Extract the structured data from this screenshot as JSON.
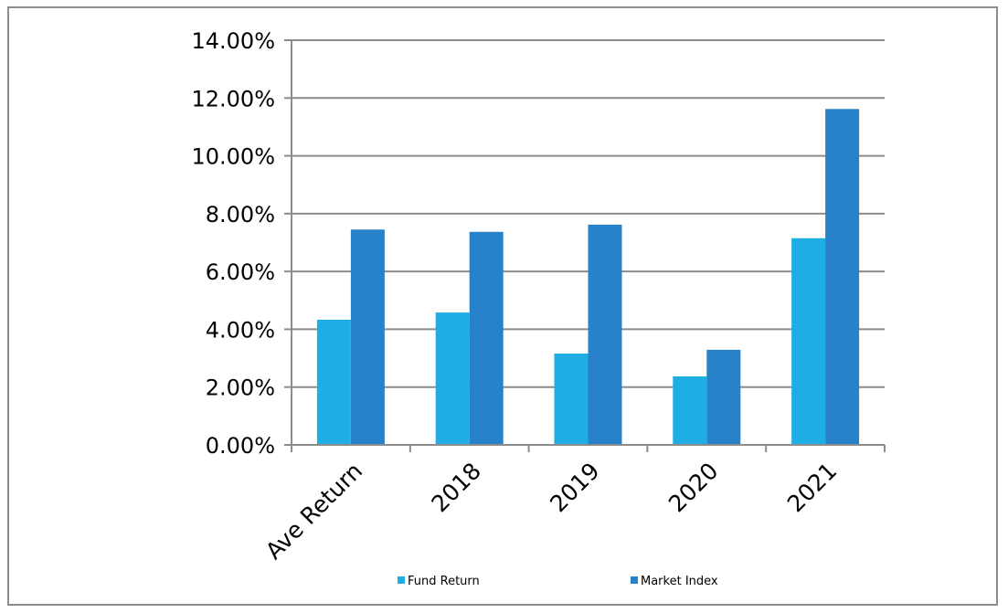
{
  "chart_data": {
    "type": "bar",
    "title": "",
    "xlabel": "",
    "ylabel": "",
    "categories": [
      "Ave Return",
      "2018",
      "2019",
      "2020",
      "2021"
    ],
    "series": [
      {
        "name": "Fund Return",
        "color": "#1faee3",
        "values": [
          4.33,
          4.58,
          3.16,
          2.37,
          7.15
        ]
      },
      {
        "name": "Market Index",
        "color": "#2882c9",
        "values": [
          7.45,
          7.37,
          7.62,
          3.29,
          11.62
        ]
      }
    ],
    "ylim": [
      0,
      14
    ],
    "yticks": [
      0,
      2,
      4,
      6,
      8,
      10,
      12,
      14
    ],
    "ytick_labels": [
      "0.00%",
      "2.00%",
      "4.00%",
      "6.00%",
      "8.00%",
      "10.00%",
      "12.00%",
      "14.00%"
    ],
    "grid": true,
    "legend_position": "bottom"
  }
}
